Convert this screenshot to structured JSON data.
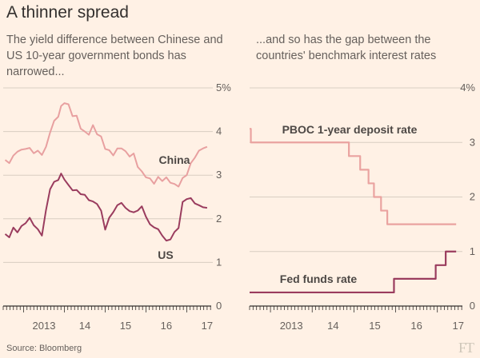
{
  "header": {
    "title": "A thinner spread",
    "subtitle_left": "The yield difference between Chinese and US 10-year government bonds has narrowed...",
    "subtitle_right": "...and so has the gap between the countries' benchmark interest rates"
  },
  "footer": {
    "source": "Source: Bloomberg",
    "logo": "FT"
  },
  "colors": {
    "background": "#fff1e5",
    "china_line": "#e8a0a0",
    "us_line": "#9a3c5e",
    "pboc_line": "#eaa3a0",
    "fed_line": "#9a3c5e",
    "grid": "#d8cec2",
    "axis": "#33302e"
  },
  "chart_data": [
    {
      "type": "line",
      "title": "",
      "xlabel": "",
      "ylabel": "",
      "x_tick_labels": [
        "2013",
        "14",
        "15",
        "16",
        "17"
      ],
      "y_tick_labels": [
        "0",
        "1",
        "2",
        "3",
        "4",
        "5%"
      ],
      "xlim": [
        2012.5,
        2017.6
      ],
      "ylim": [
        0,
        5
      ],
      "grid": true,
      "series": [
        {
          "name": "China",
          "x": [
            2012.55,
            2012.65,
            2012.75,
            2012.85,
            2012.95,
            2013.05,
            2013.15,
            2013.25,
            2013.35,
            2013.45,
            2013.55,
            2013.65,
            2013.75,
            2013.85,
            2013.92,
            2014.0,
            2014.1,
            2014.2,
            2014.3,
            2014.4,
            2014.5,
            2014.6,
            2014.7,
            2014.8,
            2014.9,
            2015.0,
            2015.1,
            2015.2,
            2015.3,
            2015.4,
            2015.5,
            2015.6,
            2015.7,
            2015.8,
            2015.9,
            2016.0,
            2016.1,
            2016.2,
            2016.3,
            2016.4,
            2016.5,
            2016.6,
            2016.7,
            2016.8,
            2016.9,
            2017.0,
            2017.1,
            2017.2,
            2017.3,
            2017.4,
            2017.5
          ],
          "values": [
            3.35,
            3.3,
            3.4,
            3.55,
            3.55,
            3.6,
            3.6,
            3.55,
            3.55,
            3.5,
            3.65,
            4.0,
            4.2,
            4.35,
            4.55,
            4.65,
            4.6,
            4.4,
            4.35,
            4.1,
            4.0,
            3.95,
            4.1,
            3.95,
            3.85,
            3.6,
            3.55,
            3.5,
            3.6,
            3.65,
            3.55,
            3.45,
            3.45,
            3.2,
            3.05,
            2.95,
            2.9,
            2.85,
            2.95,
            2.9,
            2.95,
            2.85,
            2.75,
            2.75,
            2.9,
            3.0,
            3.25,
            3.45,
            3.55,
            3.65,
            3.65
          ]
        },
        {
          "name": "US",
          "x": [
            2012.55,
            2012.65,
            2012.75,
            2012.85,
            2012.95,
            2013.05,
            2013.15,
            2013.25,
            2013.35,
            2013.45,
            2013.55,
            2013.65,
            2013.75,
            2013.85,
            2013.92,
            2014.0,
            2014.1,
            2014.2,
            2014.3,
            2014.4,
            2014.5,
            2014.6,
            2014.7,
            2014.8,
            2014.9,
            2015.0,
            2015.1,
            2015.2,
            2015.3,
            2015.4,
            2015.5,
            2015.6,
            2015.7,
            2015.8,
            2015.9,
            2016.0,
            2016.1,
            2016.2,
            2016.3,
            2016.4,
            2016.5,
            2016.6,
            2016.7,
            2016.8,
            2016.9,
            2017.0,
            2017.1,
            2017.2,
            2017.3,
            2017.4,
            2017.5
          ],
          "values": [
            1.65,
            1.6,
            1.75,
            1.7,
            1.8,
            1.9,
            2.0,
            1.9,
            1.75,
            1.65,
            2.2,
            2.7,
            2.8,
            2.9,
            3.0,
            2.9,
            2.75,
            2.7,
            2.65,
            2.6,
            2.55,
            2.45,
            2.35,
            2.35,
            2.15,
            1.75,
            2.0,
            2.2,
            2.3,
            2.4,
            2.25,
            2.2,
            2.1,
            2.2,
            2.25,
            2.05,
            1.85,
            1.85,
            1.75,
            1.65,
            1.5,
            1.55,
            1.65,
            1.8,
            2.35,
            2.45,
            2.45,
            2.4,
            2.3,
            2.3,
            2.25
          ]
        }
      ]
    },
    {
      "type": "line",
      "title": "",
      "xlabel": "",
      "ylabel": "",
      "x_tick_labels": [
        "2013",
        "14",
        "15",
        "16",
        "17"
      ],
      "y_tick_labels": [
        "0",
        "1",
        "2",
        "3",
        "4%"
      ],
      "xlim": [
        2012.5,
        2017.6
      ],
      "ylim": [
        0,
        4
      ],
      "grid": true,
      "series": [
        {
          "name": "PBOC 1-year deposit rate",
          "step": true,
          "x": [
            2012.5,
            2012.53,
            2014.88,
            2015.15,
            2015.35,
            2015.48,
            2015.65,
            2015.8,
            2017.45
          ],
          "values": [
            3.25,
            3.0,
            2.75,
            2.5,
            2.25,
            2.0,
            1.75,
            1.5,
            1.5
          ]
        },
        {
          "name": "Fed funds rate",
          "step": true,
          "x": [
            2012.5,
            2015.96,
            2016.96,
            2017.2,
            2017.45
          ],
          "values": [
            0.25,
            0.5,
            0.75,
            1.0,
            1.0
          ]
        }
      ]
    }
  ]
}
